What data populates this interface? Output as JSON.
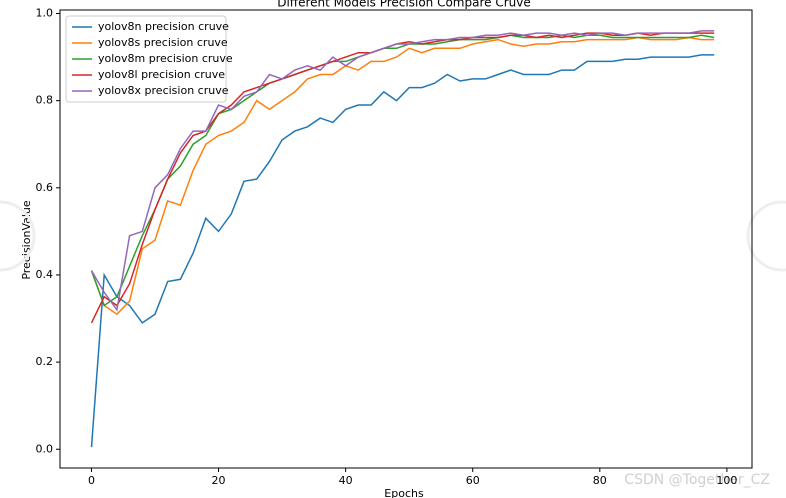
{
  "chart_data": {
    "type": "line",
    "title": "Different Models Precision Compare Cruve",
    "x_label": "Epochs",
    "y_label": "PrecisionValue",
    "x": [
      0,
      2,
      4,
      6,
      8,
      10,
      12,
      14,
      16,
      18,
      20,
      22,
      24,
      26,
      28,
      30,
      32,
      34,
      36,
      38,
      40,
      42,
      44,
      46,
      48,
      50,
      52,
      54,
      56,
      58,
      60,
      62,
      64,
      66,
      68,
      70,
      72,
      74,
      76,
      78,
      80,
      82,
      84,
      86,
      88,
      90,
      92,
      94,
      96,
      98
    ],
    "series": [
      {
        "name": "yolov8n precision cruve",
        "color": "#1f77b4",
        "values": [
          0.005,
          0.4,
          0.35,
          0.33,
          0.29,
          0.31,
          0.385,
          0.39,
          0.45,
          0.53,
          0.5,
          0.54,
          0.615,
          0.62,
          0.66,
          0.71,
          0.73,
          0.74,
          0.76,
          0.75,
          0.78,
          0.79,
          0.79,
          0.82,
          0.8,
          0.83,
          0.83,
          0.84,
          0.86,
          0.845,
          0.85,
          0.85,
          0.86,
          0.87,
          0.86,
          0.86,
          0.86,
          0.87,
          0.87,
          0.89,
          0.89,
          0.89,
          0.895,
          0.895,
          0.9,
          0.9,
          0.9,
          0.9,
          0.905,
          0.905
        ]
      },
      {
        "name": "yolov8s precision cruve",
        "color": "#ff7f0e",
        "values": [
          0.41,
          0.33,
          0.31,
          0.34,
          0.46,
          0.48,
          0.57,
          0.56,
          0.64,
          0.7,
          0.72,
          0.73,
          0.75,
          0.8,
          0.78,
          0.8,
          0.82,
          0.85,
          0.86,
          0.86,
          0.88,
          0.87,
          0.89,
          0.89,
          0.9,
          0.92,
          0.91,
          0.92,
          0.92,
          0.92,
          0.93,
          0.935,
          0.94,
          0.93,
          0.925,
          0.93,
          0.93,
          0.935,
          0.935,
          0.94,
          0.94,
          0.94,
          0.94,
          0.945,
          0.94,
          0.94,
          0.94,
          0.945,
          0.94,
          0.94
        ]
      },
      {
        "name": "yolov8m precision cruve",
        "color": "#2ca02c",
        "values": [
          0.41,
          0.33,
          0.35,
          0.42,
          0.49,
          0.55,
          0.62,
          0.65,
          0.7,
          0.72,
          0.77,
          0.78,
          0.8,
          0.82,
          0.84,
          0.85,
          0.86,
          0.87,
          0.88,
          0.89,
          0.89,
          0.9,
          0.91,
          0.92,
          0.92,
          0.93,
          0.93,
          0.93,
          0.935,
          0.94,
          0.94,
          0.94,
          0.945,
          0.95,
          0.945,
          0.945,
          0.945,
          0.95,
          0.945,
          0.95,
          0.95,
          0.945,
          0.945,
          0.945,
          0.945,
          0.945,
          0.945,
          0.945,
          0.95,
          0.945
        ]
      },
      {
        "name": "yolov8l precision cruve",
        "color": "#d62728",
        "values": [
          0.29,
          0.35,
          0.33,
          0.38,
          0.47,
          0.55,
          0.62,
          0.68,
          0.72,
          0.73,
          0.77,
          0.79,
          0.82,
          0.83,
          0.84,
          0.85,
          0.86,
          0.87,
          0.88,
          0.89,
          0.9,
          0.91,
          0.91,
          0.92,
          0.93,
          0.935,
          0.93,
          0.935,
          0.94,
          0.94,
          0.945,
          0.945,
          0.945,
          0.95,
          0.95,
          0.945,
          0.95,
          0.945,
          0.95,
          0.955,
          0.955,
          0.95,
          0.95,
          0.955,
          0.95,
          0.955,
          0.955,
          0.955,
          0.955,
          0.955
        ]
      },
      {
        "name": "yolov8x precision cruve",
        "color": "#9467bd",
        "values": [
          0.41,
          0.36,
          0.32,
          0.49,
          0.5,
          0.6,
          0.63,
          0.69,
          0.73,
          0.73,
          0.79,
          0.78,
          0.81,
          0.82,
          0.86,
          0.85,
          0.87,
          0.88,
          0.87,
          0.9,
          0.88,
          0.9,
          0.91,
          0.92,
          0.93,
          0.93,
          0.935,
          0.94,
          0.94,
          0.945,
          0.945,
          0.95,
          0.95,
          0.955,
          0.95,
          0.955,
          0.955,
          0.95,
          0.955,
          0.95,
          0.955,
          0.955,
          0.95,
          0.955,
          0.955,
          0.955,
          0.955,
          0.955,
          0.96,
          0.96
        ]
      }
    ],
    "xlim": [
      -4.95,
      103.95
    ],
    "xticks": [
      0,
      20,
      40,
      60,
      80,
      100
    ],
    "ylim": [
      -0.043,
      1.008
    ],
    "yticks": [
      {
        "value": 0,
        "label": "0.0"
      },
      0.2,
      0.4,
      0.6,
      0.8,
      {
        "value": 1,
        "label": "1.0"
      }
    ],
    "legend": "upper left",
    "grid": false
  },
  "watermark": "CSDN @Together_CZ"
}
